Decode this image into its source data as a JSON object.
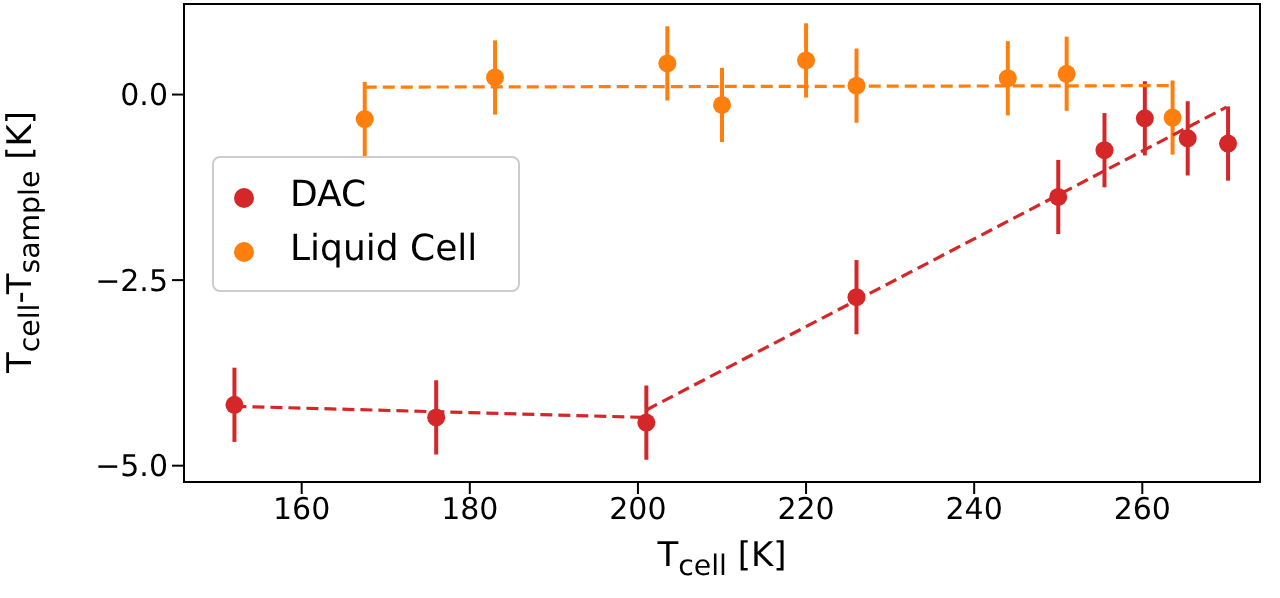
{
  "chart_data": {
    "type": "scatter",
    "xlabel": "T$_{cell}$ [K]",
    "ylabel": "T$_{cell}$-T$_{sample}$ [K]",
    "xlim": [
      146,
      274
    ],
    "ylim": [
      -5.22,
      1.22
    ],
    "xticks": [
      160,
      180,
      200,
      220,
      240,
      260
    ],
    "yticks": [
      {
        "value": -5,
        "label": "−5.0"
      },
      {
        "value": -2.5,
        "label": "−2.5"
      },
      {
        "value": 0,
        "label": "0.0"
      }
    ],
    "legend": "left",
    "marker": "circle",
    "series": [
      {
        "name": "DAC",
        "color": "#d62728",
        "x": [
          152,
          176,
          201,
          226,
          250,
          255.5,
          260.3,
          265.4,
          270.2
        ],
        "values": [
          -4.18,
          -4.35,
          -4.42,
          -2.73,
          -1.38,
          -0.75,
          -0.32,
          -0.59,
          -0.66
        ],
        "errors": [
          0.5,
          0.5,
          0.5,
          0.5,
          0.5,
          0.5,
          0.5,
          0.5,
          0.5
        ]
      },
      {
        "name": "Liquid Cell",
        "color": "#ff7f0e",
        "x": [
          167.5,
          183,
          203.5,
          210,
          220,
          226,
          244,
          251,
          263.6
        ],
        "values": [
          -0.33,
          0.23,
          0.42,
          -0.14,
          0.46,
          0.12,
          0.22,
          0.28,
          -0.31
        ],
        "errors": [
          0.5,
          0.5,
          0.5,
          0.5,
          0.5,
          0.5,
          0.5,
          0.5,
          0.5
        ]
      },
      {
        "type": "line",
        "color": "#d62728",
        "line_style": "dashed",
        "marker": "none",
        "x": [
          152,
          201
        ],
        "values": [
          -4.2,
          -4.35
        ]
      },
      {
        "type": "line",
        "color": "#d62728",
        "line_style": "dashed",
        "marker": "none",
        "x": [
          201,
          270
        ],
        "values": [
          -4.25,
          -0.17
        ]
      },
      {
        "type": "line",
        "color": "#ff7f0e",
        "line_style": "dashed",
        "marker": "none",
        "x": [
          167.5,
          263.6
        ],
        "values": [
          0.1,
          0.12
        ]
      }
    ]
  }
}
